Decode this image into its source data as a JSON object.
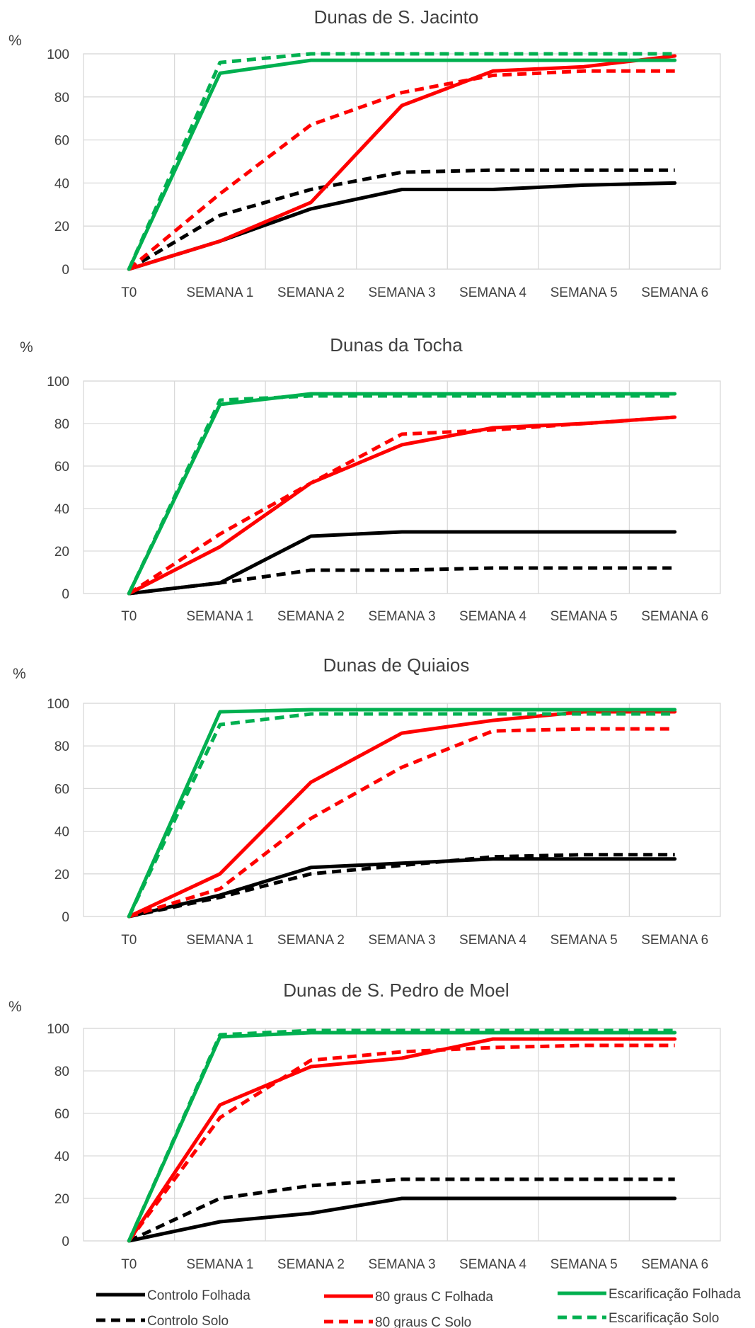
{
  "colors": {
    "controlo": "#000000",
    "graus": "#ff0000",
    "escarificacao": "#00b050",
    "grid": "#d9d9d9",
    "text": "#404040"
  },
  "legend": [
    {
      "label": "Controlo  Folhada",
      "series": "Controlo  Folhada"
    },
    {
      "label": "Controlo  Solo",
      "series": "Controlo  Solo"
    },
    {
      "label": "80 graus C  Folhada",
      "series": "80 graus C  Folhada"
    },
    {
      "label": "80 graus C  Solo",
      "series": "80 graus C  Solo"
    },
    {
      "label": "Escarificação Folhada",
      "series": "Escarificação Folhada"
    },
    {
      "label": "Escarificação Solo",
      "series": "Escarificação Solo"
    }
  ],
  "chart_data": [
    {
      "type": "line",
      "title": "Dunas de S. Jacinto",
      "ylabel": "%",
      "xlabel": "",
      "ylim": [
        0,
        100
      ],
      "yticks": [
        0,
        20,
        40,
        60,
        80,
        100
      ],
      "grid": true,
      "categories": [
        "T0",
        "SEMANA 1",
        "SEMANA 2",
        "SEMANA 3",
        "SEMANA 4",
        "SEMANA 5",
        "SEMANA 6"
      ],
      "series": [
        {
          "name": "Controlo  Folhada",
          "color": "#000000",
          "dash": false,
          "values": [
            0,
            13,
            28,
            37,
            37,
            39,
            40
          ]
        },
        {
          "name": "Controlo  Solo",
          "color": "#000000",
          "dash": true,
          "values": [
            0,
            25,
            37,
            45,
            46,
            46,
            46
          ]
        },
        {
          "name": "80 graus C  Folhada",
          "color": "#ff0000",
          "dash": false,
          "values": [
            0,
            13,
            31,
            76,
            92,
            94,
            99
          ]
        },
        {
          "name": "80 graus C  Solo",
          "color": "#ff0000",
          "dash": true,
          "values": [
            0,
            35,
            67,
            82,
            90,
            92,
            92
          ]
        },
        {
          "name": "Escarificação Folhada",
          "color": "#00b050",
          "dash": false,
          "values": [
            0,
            91,
            97,
            97,
            97,
            97,
            97
          ]
        },
        {
          "name": "Escarificação Solo",
          "color": "#00b050",
          "dash": true,
          "values": [
            0,
            96,
            100,
            100,
            100,
            100,
            100
          ]
        }
      ]
    },
    {
      "type": "line",
      "title": "Dunas da Tocha",
      "ylabel": "%",
      "xlabel": "",
      "ylim": [
        0,
        100
      ],
      "yticks": [
        0,
        20,
        40,
        60,
        80,
        100
      ],
      "grid": true,
      "categories": [
        "T0",
        "SEMANA 1",
        "SEMANA 2",
        "SEMANA 3",
        "SEMANA 4",
        "SEMANA 5",
        "SEMANA 6"
      ],
      "series": [
        {
          "name": "Controlo  Folhada",
          "color": "#000000",
          "dash": false,
          "values": [
            0,
            5,
            27,
            29,
            29,
            29,
            29
          ]
        },
        {
          "name": "Controlo  Solo",
          "color": "#000000",
          "dash": true,
          "values": [
            0,
            5,
            11,
            11,
            12,
            12,
            12
          ]
        },
        {
          "name": "80 graus C  Folhada",
          "color": "#ff0000",
          "dash": false,
          "values": [
            0,
            22,
            52,
            70,
            78,
            80,
            83
          ]
        },
        {
          "name": "80 graus C  Solo",
          "color": "#ff0000",
          "dash": true,
          "values": [
            0,
            28,
            52,
            75,
            77,
            80,
            83
          ]
        },
        {
          "name": "Escarificação Folhada",
          "color": "#00b050",
          "dash": false,
          "values": [
            0,
            89,
            94,
            94,
            94,
            94,
            94
          ]
        },
        {
          "name": "Escarificação Solo",
          "color": "#00b050",
          "dash": true,
          "values": [
            0,
            91,
            93,
            93,
            93,
            93,
            93
          ]
        }
      ]
    },
    {
      "type": "line",
      "title": "Dunas de Quiaios",
      "ylabel": "%",
      "xlabel": "",
      "ylim": [
        0,
        100
      ],
      "yticks": [
        0,
        20,
        40,
        60,
        80,
        100
      ],
      "grid": true,
      "categories": [
        "T0",
        "SEMANA 1",
        "SEMANA 2",
        "SEMANA 3",
        "SEMANA 4",
        "SEMANA 5",
        "SEMANA 6"
      ],
      "series": [
        {
          "name": "Controlo  Folhada",
          "color": "#000000",
          "dash": false,
          "values": [
            0,
            10,
            23,
            25,
            27,
            27,
            27
          ]
        },
        {
          "name": "Controlo  Solo",
          "color": "#000000",
          "dash": true,
          "values": [
            0,
            9,
            20,
            24,
            28,
            29,
            29
          ]
        },
        {
          "name": "80 graus C  Folhada",
          "color": "#ff0000",
          "dash": false,
          "values": [
            0,
            20,
            63,
            86,
            92,
            96,
            96
          ]
        },
        {
          "name": "80 graus C  Solo",
          "color": "#ff0000",
          "dash": true,
          "values": [
            0,
            13,
            46,
            70,
            87,
            88,
            88
          ]
        },
        {
          "name": "Escarificação Folhada",
          "color": "#00b050",
          "dash": false,
          "values": [
            0,
            96,
            97,
            97,
            97,
            97,
            97
          ]
        },
        {
          "name": "Escarificação Solo",
          "color": "#00b050",
          "dash": true,
          "values": [
            0,
            90,
            95,
            95,
            95,
            95,
            95
          ]
        }
      ]
    },
    {
      "type": "line",
      "title": "Dunas de S. Pedro de Moel",
      "ylabel": "%",
      "xlabel": "",
      "ylim": [
        0,
        100
      ],
      "yticks": [
        0,
        20,
        40,
        60,
        80,
        100
      ],
      "grid": true,
      "categories": [
        "T0",
        "SEMANA 1",
        "SEMANA 2",
        "SEMANA 3",
        "SEMANA 4",
        "SEMANA 5",
        "SEMANA 6"
      ],
      "series": [
        {
          "name": "Controlo  Folhada",
          "color": "#000000",
          "dash": false,
          "values": [
            0,
            9,
            13,
            20,
            20,
            20,
            20
          ]
        },
        {
          "name": "Controlo  Solo",
          "color": "#000000",
          "dash": true,
          "values": [
            0,
            20,
            26,
            29,
            29,
            29,
            29
          ]
        },
        {
          "name": "80 graus C  Folhada",
          "color": "#ff0000",
          "dash": false,
          "values": [
            0,
            64,
            82,
            86,
            95,
            95,
            95
          ]
        },
        {
          "name": "80 graus C  Solo",
          "color": "#ff0000",
          "dash": true,
          "values": [
            0,
            58,
            85,
            89,
            91,
            92,
            92
          ]
        },
        {
          "name": "Escarificação Folhada",
          "color": "#00b050",
          "dash": false,
          "values": [
            0,
            96,
            98,
            98,
            98,
            98,
            98
          ]
        },
        {
          "name": "Escarificação Solo",
          "color": "#00b050",
          "dash": true,
          "values": [
            0,
            97,
            99,
            99,
            99,
            99,
            99
          ]
        }
      ]
    }
  ]
}
